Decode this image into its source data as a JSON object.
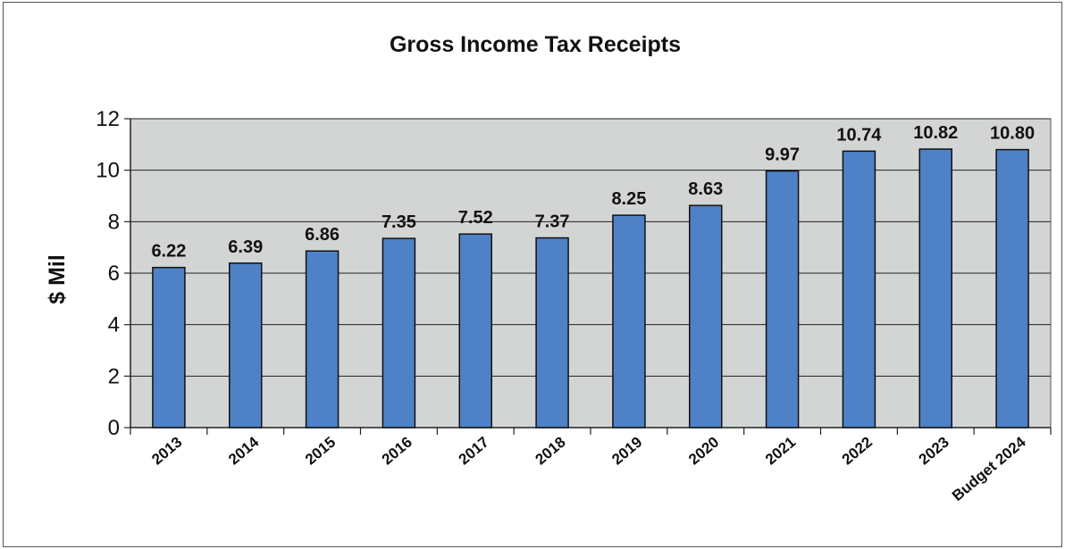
{
  "chart_data": {
    "type": "bar",
    "title": "Gross Income Tax Receipts",
    "ylabel": "$ Mil",
    "xlabel": "",
    "categories": [
      "2013",
      "2014",
      "2015",
      "2016",
      "2017",
      "2018",
      "2019",
      "2020",
      "2021",
      "2022",
      "2023",
      "Budget 2024"
    ],
    "values": [
      6.22,
      6.39,
      6.86,
      7.35,
      7.52,
      7.37,
      8.25,
      8.63,
      9.97,
      10.74,
      10.82,
      10.8
    ],
    "value_labels": [
      "6.22",
      "6.39",
      "6.86",
      "7.35",
      "7.52",
      "7.37",
      "8.25",
      "8.63",
      "9.97",
      "10.74",
      "10.82",
      "10.80"
    ],
    "ylim": [
      0,
      12
    ],
    "yticks": [
      0,
      2,
      4,
      6,
      8,
      10,
      12
    ],
    "ytick_labels": [
      "0",
      "2",
      "4",
      "6",
      "8",
      "10",
      "12"
    ],
    "grid": true,
    "legend": "none",
    "colors": {
      "bar": "#4f81c7",
      "bar_edge": "#111111",
      "plot_bg": "#d3d5d4",
      "grid": "#222222"
    }
  }
}
